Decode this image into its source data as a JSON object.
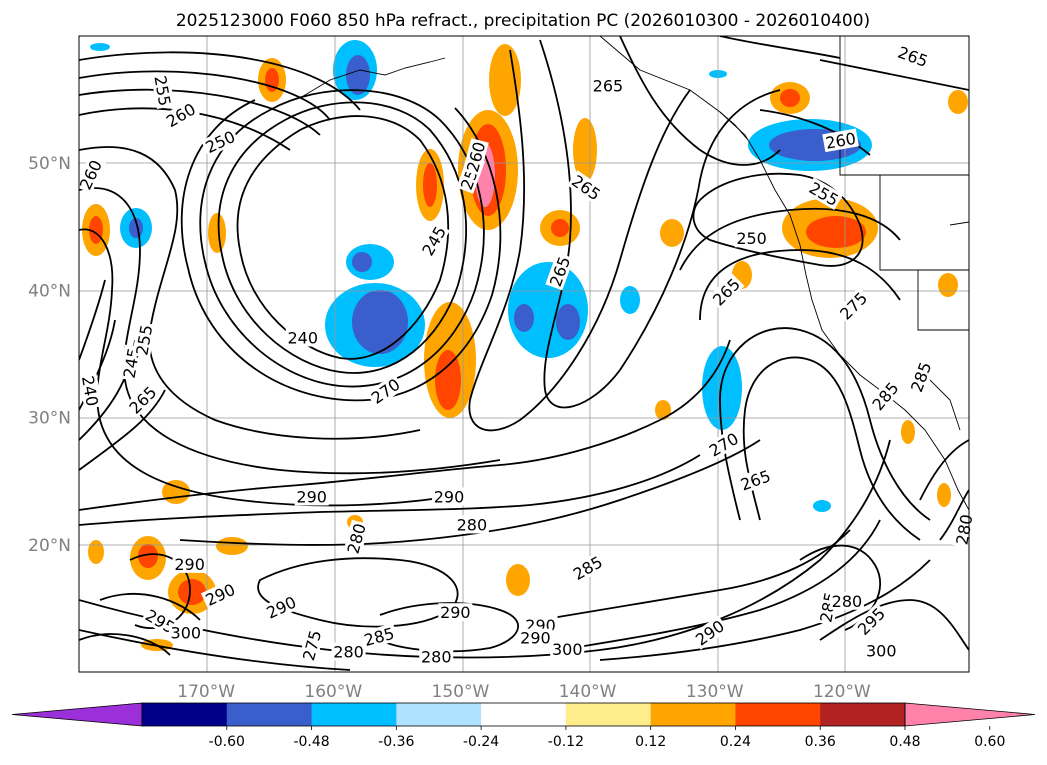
{
  "chart_data": {
    "type": "heatmap",
    "title": "2025123000 F060 850 hPa refract., precipitation PC (2026010300 - 2026010400)",
    "map": {
      "lon_range": [
        -180,
        -110
      ],
      "lat_range": [
        10,
        60
      ],
      "grid": true,
      "coastlines": true
    },
    "x_ticks": [
      {
        "lon": -170,
        "label": "170°W"
      },
      {
        "lon": -160,
        "label": "160°W"
      },
      {
        "lon": -150,
        "label": "150°W"
      },
      {
        "lon": -140,
        "label": "140°W"
      },
      {
        "lon": -130,
        "label": "130°W"
      },
      {
        "lon": -120,
        "label": "120°W"
      }
    ],
    "y_ticks": [
      {
        "lat": 20,
        "label": "20°N"
      },
      {
        "lat": 30,
        "label": "30°N"
      },
      {
        "lat": 40,
        "label": "40°N"
      },
      {
        "lat": 50,
        "label": "50°N"
      }
    ],
    "colorbar": {
      "extend": "both",
      "levels": [
        "-0.60",
        "-0.48",
        "-0.36",
        "-0.24",
        "-0.12",
        "0.12",
        "0.24",
        "0.36",
        "0.48",
        "0.60"
      ],
      "colors": [
        "#9b30d9",
        "#00008b",
        "#3a5fcd",
        "#00bfff",
        "#b0e2ff",
        "#ffffff",
        "#ffec8b",
        "#ffa500",
        "#ff4500",
        "#b22222",
        "#ff82ab"
      ]
    },
    "contour_labels": [
      {
        "text": "255",
        "lon": -173.4,
        "lat": 55.7,
        "rot": 80
      },
      {
        "text": "260",
        "lon": -172.0,
        "lat": 53.8,
        "rot": -30
      },
      {
        "text": "260",
        "lon": -179.1,
        "lat": 49.1,
        "rot": -65
      },
      {
        "text": "250",
        "lon": -168.9,
        "lat": 51.7,
        "rot": -25
      },
      {
        "text": "245",
        "lon": -152.1,
        "lat": 43.9,
        "rot": -60
      },
      {
        "text": "240",
        "lon": -162.4,
        "lat": 36.3,
        "rot": 0
      },
      {
        "text": "270",
        "lon": -155.9,
        "lat": 32.1,
        "rot": -35
      },
      {
        "text": "255",
        "lon": -149.2,
        "lat": 49.1,
        "rot": -70
      },
      {
        "text": "260",
        "lon": -148.8,
        "lat": 50.5,
        "rot": -75
      },
      {
        "text": "265",
        "lon": -140.1,
        "lat": 48.1,
        "rot": 35
      },
      {
        "text": "265",
        "lon": -142.2,
        "lat": 41.5,
        "rot": -70
      },
      {
        "text": "265",
        "lon": -138.4,
        "lat": 56.1,
        "rot": 0
      },
      {
        "text": "265",
        "lon": -114.4,
        "lat": 58.4,
        "rot": 20
      },
      {
        "text": "260",
        "lon": -120.1,
        "lat": 51.8,
        "rot": -10
      },
      {
        "text": "255",
        "lon": -121.4,
        "lat": 47.6,
        "rot": 30
      },
      {
        "text": "250",
        "lon": -127.1,
        "lat": 44.1,
        "rot": 0
      },
      {
        "text": "265",
        "lon": -129.1,
        "lat": 39.9,
        "rot": -45
      },
      {
        "text": "275",
        "lon": -119.1,
        "lat": 38.8,
        "rot": -45
      },
      {
        "text": "285",
        "lon": -116.6,
        "lat": 31.7,
        "rot": -50
      },
      {
        "text": "285",
        "lon": -113.8,
        "lat": 33.2,
        "rot": -70
      },
      {
        "text": "270",
        "lon": -129.3,
        "lat": 27.9,
        "rot": -30
      },
      {
        "text": "265",
        "lon": -126.8,
        "lat": 25.1,
        "rot": -20
      },
      {
        "text": "290",
        "lon": -161.7,
        "lat": 23.8,
        "rot": 0
      },
      {
        "text": "290",
        "lon": -150.9,
        "lat": 23.8,
        "rot": 0
      },
      {
        "text": "280",
        "lon": -149.1,
        "lat": 21.6,
        "rot": 0
      },
      {
        "text": "280",
        "lon": -158.2,
        "lat": 20.5,
        "rot": -75
      },
      {
        "text": "285",
        "lon": -140.0,
        "lat": 18.2,
        "rot": -30
      },
      {
        "text": "290",
        "lon": -171.3,
        "lat": 18.5,
        "rot": 0
      },
      {
        "text": "290",
        "lon": -168.9,
        "lat": 16.1,
        "rot": -25
      },
      {
        "text": "295",
        "lon": -173.6,
        "lat": 14.0,
        "rot": 30
      },
      {
        "text": "290",
        "lon": -164.1,
        "lat": 15.1,
        "rot": -25
      },
      {
        "text": "300",
        "lon": -171.6,
        "lat": 13.1,
        "rot": 0
      },
      {
        "text": "290",
        "lon": -150.4,
        "lat": 14.7,
        "rot": 0
      },
      {
        "text": "290",
        "lon": -143.7,
        "lat": 13.7,
        "rot": 0
      },
      {
        "text": "285",
        "lon": -156.4,
        "lat": 12.8,
        "rot": -15
      },
      {
        "text": "280",
        "lon": -158.8,
        "lat": 11.6,
        "rot": 0
      },
      {
        "text": "275",
        "lon": -161.7,
        "lat": 12.1,
        "rot": -75
      },
      {
        "text": "290",
        "lon": -144.1,
        "lat": 12.7,
        "rot": 0
      },
      {
        "text": "300",
        "lon": -141.6,
        "lat": 11.8,
        "rot": 0
      },
      {
        "text": "290",
        "lon": -130.4,
        "lat": 13.1,
        "rot": -35
      },
      {
        "text": "295",
        "lon": -117.7,
        "lat": 14.0,
        "rot": -45
      },
      {
        "text": "285",
        "lon": -121.1,
        "lat": 15.1,
        "rot": -80
      },
      {
        "text": "280",
        "lon": -119.6,
        "lat": 15.6,
        "rot": 0
      },
      {
        "text": "300",
        "lon": -116.9,
        "lat": 11.7,
        "rot": 0
      },
      {
        "text": "280",
        "lon": -110.4,
        "lat": 21.2,
        "rot": -80
      },
      {
        "text": "280",
        "lon": -151.9,
        "lat": 11.2,
        "rot": 0
      },
      {
        "text": "240",
        "lon": -179.1,
        "lat": 32.1,
        "rot": 80
      },
      {
        "text": "245",
        "lon": -175.9,
        "lat": 34.3,
        "rot": -80
      },
      {
        "text": "255",
        "lon": -174.9,
        "lat": 36.1,
        "rot": -80
      },
      {
        "text": "265",
        "lon": -175.0,
        "lat": 31.4,
        "rot": -45
      }
    ]
  }
}
